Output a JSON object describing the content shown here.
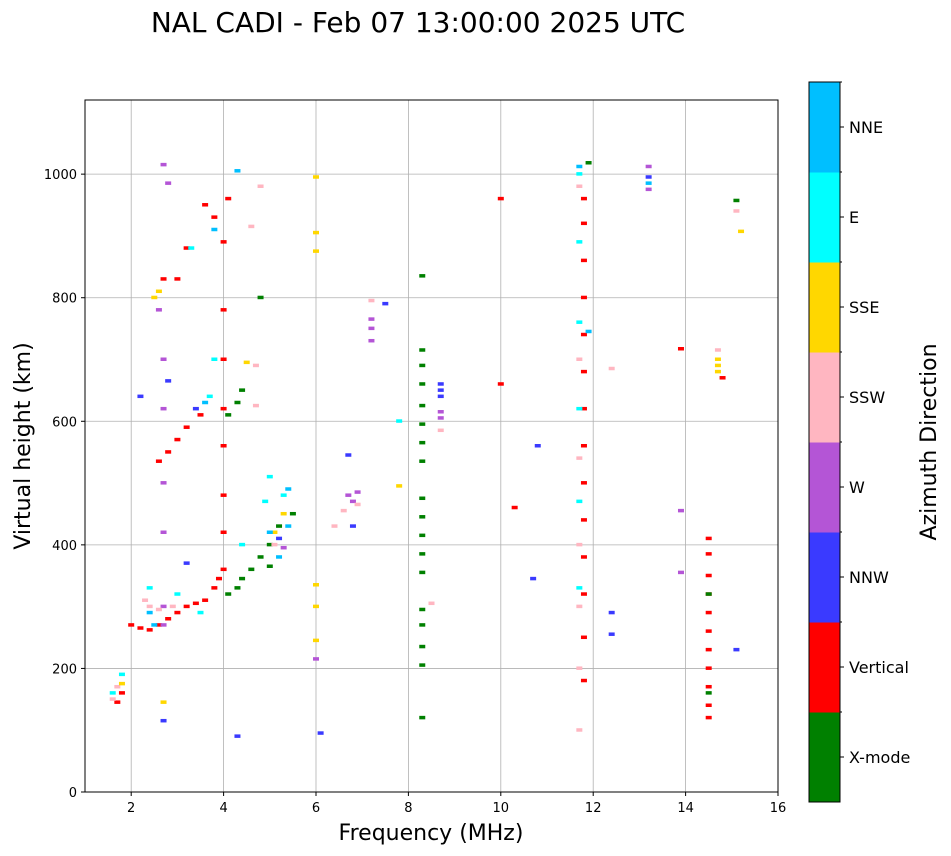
{
  "chart_data": {
    "type": "scatter",
    "title": "NAL CADI - Feb 07 13:00:00 2025 UTC",
    "xlabel": "Frequency (MHz)",
    "ylabel": "Virtual height (km)",
    "xlim": [
      1,
      16
    ],
    "ylim": [
      0,
      1120
    ],
    "xticks": [
      2,
      4,
      6,
      8,
      10,
      12,
      14,
      16
    ],
    "yticks": [
      0,
      200,
      400,
      600,
      800,
      1000
    ],
    "grid": true,
    "colorbar": {
      "label": "Azimuth Direction",
      "categories": [
        {
          "name": "X-mode",
          "color": "#008000"
        },
        {
          "name": "Vertical",
          "color": "#ff0000"
        },
        {
          "name": "NNW",
          "color": "#3a3aff"
        },
        {
          "name": "W",
          "color": "#b455d6"
        },
        {
          "name": "SSW",
          "color": "#ffb6c1"
        },
        {
          "name": "SSE",
          "color": "#ffd700"
        },
        {
          "name": "E",
          "color": "#00ffff"
        },
        {
          "name": "NNE",
          "color": "#00bfff"
        }
      ]
    },
    "series": [
      {
        "name": "Vertical",
        "points": [
          [
            1.7,
            145
          ],
          [
            1.8,
            160
          ],
          [
            2.0,
            270
          ],
          [
            2.2,
            265
          ],
          [
            2.4,
            262
          ],
          [
            2.6,
            270
          ],
          [
            2.8,
            280
          ],
          [
            3.0,
            290
          ],
          [
            3.2,
            300
          ],
          [
            3.4,
            305
          ],
          [
            3.6,
            310
          ],
          [
            3.8,
            330
          ],
          [
            3.9,
            345
          ],
          [
            4.0,
            360
          ],
          [
            4.0,
            420
          ],
          [
            4.0,
            480
          ],
          [
            4.0,
            560
          ],
          [
            4.0,
            620
          ],
          [
            4.0,
            700
          ],
          [
            4.0,
            780
          ],
          [
            4.0,
            890
          ],
          [
            4.1,
            960
          ],
          [
            2.6,
            535
          ],
          [
            2.8,
            550
          ],
          [
            3.0,
            570
          ],
          [
            3.2,
            590
          ],
          [
            3.5,
            610
          ],
          [
            2.7,
            830
          ],
          [
            3.0,
            830
          ],
          [
            3.6,
            950
          ],
          [
            3.8,
            930
          ],
          [
            3.2,
            880
          ],
          [
            10.0,
            960
          ],
          [
            10.0,
            660
          ],
          [
            10.3,
            460
          ],
          [
            11.8,
            180
          ],
          [
            11.8,
            250
          ],
          [
            11.8,
            320
          ],
          [
            11.8,
            380
          ],
          [
            11.8,
            440
          ],
          [
            11.8,
            500
          ],
          [
            11.8,
            560
          ],
          [
            11.8,
            620
          ],
          [
            11.8,
            680
          ],
          [
            11.8,
            740
          ],
          [
            11.8,
            800
          ],
          [
            11.8,
            860
          ],
          [
            11.8,
            920
          ],
          [
            11.8,
            960
          ],
          [
            13.9,
            717
          ],
          [
            14.5,
            410
          ],
          [
            14.5,
            385
          ],
          [
            14.5,
            350
          ],
          [
            14.5,
            320
          ],
          [
            14.5,
            290
          ],
          [
            14.5,
            260
          ],
          [
            14.5,
            230
          ],
          [
            14.5,
            200
          ],
          [
            14.5,
            170
          ],
          [
            14.5,
            140
          ],
          [
            14.5,
            120
          ],
          [
            14.8,
            670
          ]
        ]
      },
      {
        "name": "X-mode",
        "points": [
          [
            4.1,
            320
          ],
          [
            4.3,
            330
          ],
          [
            4.4,
            345
          ],
          [
            4.6,
            360
          ],
          [
            4.8,
            380
          ],
          [
            5.0,
            400
          ],
          [
            5.2,
            430
          ],
          [
            4.4,
            650
          ],
          [
            4.3,
            630
          ],
          [
            4.1,
            610
          ],
          [
            8.3,
            120
          ],
          [
            8.3,
            205
          ],
          [
            8.3,
            235
          ],
          [
            8.3,
            270
          ],
          [
            8.3,
            295
          ],
          [
            8.3,
            355
          ],
          [
            8.3,
            385
          ],
          [
            8.3,
            415
          ],
          [
            8.3,
            445
          ],
          [
            8.3,
            475
          ],
          [
            8.3,
            535
          ],
          [
            8.3,
            565
          ],
          [
            8.3,
            595
          ],
          [
            8.3,
            625
          ],
          [
            8.3,
            660
          ],
          [
            8.3,
            690
          ],
          [
            8.3,
            715
          ],
          [
            8.3,
            835
          ],
          [
            11.9,
            1018
          ],
          [
            15.1,
            957
          ],
          [
            14.5,
            160
          ],
          [
            14.5,
            320
          ],
          [
            5.0,
            365
          ],
          [
            5.5,
            450
          ],
          [
            4.8,
            800
          ]
        ]
      },
      {
        "name": "NNW",
        "points": [
          [
            2.7,
            115
          ],
          [
            4.3,
            90
          ],
          [
            6.1,
            95
          ],
          [
            7.5,
            790
          ],
          [
            6.7,
            545
          ],
          [
            6.8,
            430
          ],
          [
            8.7,
            660
          ],
          [
            8.7,
            650
          ],
          [
            8.7,
            640
          ],
          [
            10.7,
            345
          ],
          [
            10.8,
            560
          ],
          [
            12.4,
            290
          ],
          [
            12.4,
            255
          ],
          [
            13.2,
            995
          ],
          [
            15.1,
            230
          ],
          [
            2.2,
            640
          ],
          [
            2.8,
            665
          ],
          [
            3.4,
            620
          ],
          [
            5.2,
            410
          ],
          [
            3.2,
            370
          ]
        ]
      },
      {
        "name": "W",
        "points": [
          [
            2.7,
            1015
          ],
          [
            2.8,
            985
          ],
          [
            2.6,
            780
          ],
          [
            2.7,
            700
          ],
          [
            2.7,
            620
          ],
          [
            2.7,
            500
          ],
          [
            2.7,
            420
          ],
          [
            2.7,
            300
          ],
          [
            2.7,
            270
          ],
          [
            6.7,
            480
          ],
          [
            6.8,
            470
          ],
          [
            6.9,
            485
          ],
          [
            7.2,
            765
          ],
          [
            7.2,
            750
          ],
          [
            7.2,
            730
          ],
          [
            8.7,
            615
          ],
          [
            8.7,
            605
          ],
          [
            13.2,
            1012
          ],
          [
            13.2,
            975
          ],
          [
            13.9,
            455
          ],
          [
            13.9,
            355
          ],
          [
            6.0,
            215
          ],
          [
            5.3,
            395
          ]
        ]
      },
      {
        "name": "SSW",
        "points": [
          [
            1.6,
            150
          ],
          [
            1.7,
            170
          ],
          [
            2.3,
            310
          ],
          [
            2.4,
            300
          ],
          [
            2.6,
            295
          ],
          [
            2.9,
            300
          ],
          [
            4.8,
            980
          ],
          [
            4.7,
            690
          ],
          [
            4.7,
            625
          ],
          [
            6.4,
            430
          ],
          [
            6.6,
            455
          ],
          [
            6.9,
            465
          ],
          [
            7.2,
            795
          ],
          [
            8.7,
            585
          ],
          [
            11.7,
            100
          ],
          [
            11.7,
            200
          ],
          [
            11.7,
            300
          ],
          [
            11.7,
            400
          ],
          [
            11.7,
            540
          ],
          [
            11.7,
            700
          ],
          [
            11.7,
            980
          ],
          [
            12.4,
            685
          ],
          [
            14.7,
            715
          ],
          [
            15.1,
            940
          ],
          [
            8.5,
            305
          ],
          [
            4.6,
            915
          ],
          [
            5.1,
            400
          ]
        ]
      },
      {
        "name": "SSE",
        "points": [
          [
            2.5,
            800
          ],
          [
            2.6,
            810
          ],
          [
            4.5,
            695
          ],
          [
            6.0,
            995
          ],
          [
            6.0,
            905
          ],
          [
            6.0,
            875
          ],
          [
            6.0,
            335
          ],
          [
            6.0,
            300
          ],
          [
            6.0,
            245
          ],
          [
            7.8,
            495
          ],
          [
            14.7,
            700
          ],
          [
            14.7,
            690
          ],
          [
            14.7,
            680
          ],
          [
            15.2,
            907
          ],
          [
            1.8,
            175
          ],
          [
            5.3,
            450
          ],
          [
            5.1,
            420
          ],
          [
            2.7,
            145
          ]
        ]
      },
      {
        "name": "E",
        "points": [
          [
            1.6,
            160
          ],
          [
            1.8,
            190
          ],
          [
            2.4,
            330
          ],
          [
            3.0,
            320
          ],
          [
            3.5,
            290
          ],
          [
            3.7,
            640
          ],
          [
            3.8,
            700
          ],
          [
            4.4,
            400
          ],
          [
            4.9,
            470
          ],
          [
            5.0,
            510
          ],
          [
            5.3,
            480
          ],
          [
            7.8,
            600
          ],
          [
            11.7,
            330
          ],
          [
            11.7,
            470
          ],
          [
            11.7,
            620
          ],
          [
            11.7,
            760
          ],
          [
            11.7,
            890
          ],
          [
            11.7,
            1000
          ],
          [
            3.3,
            880
          ]
        ]
      },
      {
        "name": "NNE",
        "points": [
          [
            3.8,
            910
          ],
          [
            4.3,
            1005
          ],
          [
            5.0,
            420
          ],
          [
            5.4,
            430
          ],
          [
            5.4,
            490
          ],
          [
            11.7,
            1012
          ],
          [
            11.9,
            745
          ],
          [
            13.2,
            985
          ],
          [
            3.6,
            630
          ],
          [
            2.5,
            270
          ],
          [
            2.4,
            290
          ],
          [
            5.2,
            380
          ]
        ]
      }
    ]
  }
}
